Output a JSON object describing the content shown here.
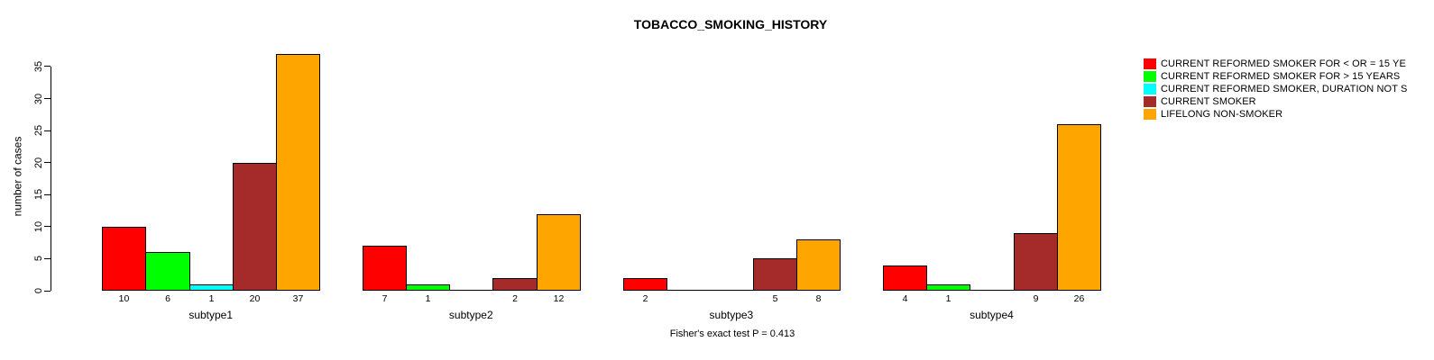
{
  "chart_data": {
    "type": "bar",
    "title": "TOBACCO_SMOKING_HISTORY",
    "ylabel": "number of cases",
    "xlabel": "",
    "footer": "Fisher's exact test P = 0.413",
    "categories": [
      "subtype1",
      "subtype2",
      "subtype3",
      "subtype4"
    ],
    "series": [
      {
        "name": "CURRENT REFORMED SMOKER FOR < OR = 15 YE",
        "color": "#ff0000",
        "values": [
          10,
          7,
          2,
          4
        ]
      },
      {
        "name": "CURRENT REFORMED SMOKER FOR > 15 YEARS",
        "color": "#00ff00",
        "values": [
          6,
          1,
          0,
          1
        ]
      },
      {
        "name": "CURRENT REFORMED SMOKER, DURATION NOT S",
        "color": "#00ffff",
        "values": [
          1,
          0,
          0,
          0
        ]
      },
      {
        "name": "CURRENT SMOKER",
        "color": "#a52a2a",
        "values": [
          20,
          2,
          5,
          9
        ]
      },
      {
        "name": "LIFELONG NON-SMOKER",
        "color": "#ffa500",
        "values": [
          37,
          12,
          8,
          26
        ]
      }
    ],
    "yticks": [
      0,
      5,
      10,
      15,
      20,
      25,
      30,
      35
    ],
    "ylim": [
      0,
      37
    ],
    "grid": false,
    "legend_position": "right",
    "value_labels_shown_for_zero": false,
    "background_color": "#ffffff",
    "text_color": "#000000"
  }
}
